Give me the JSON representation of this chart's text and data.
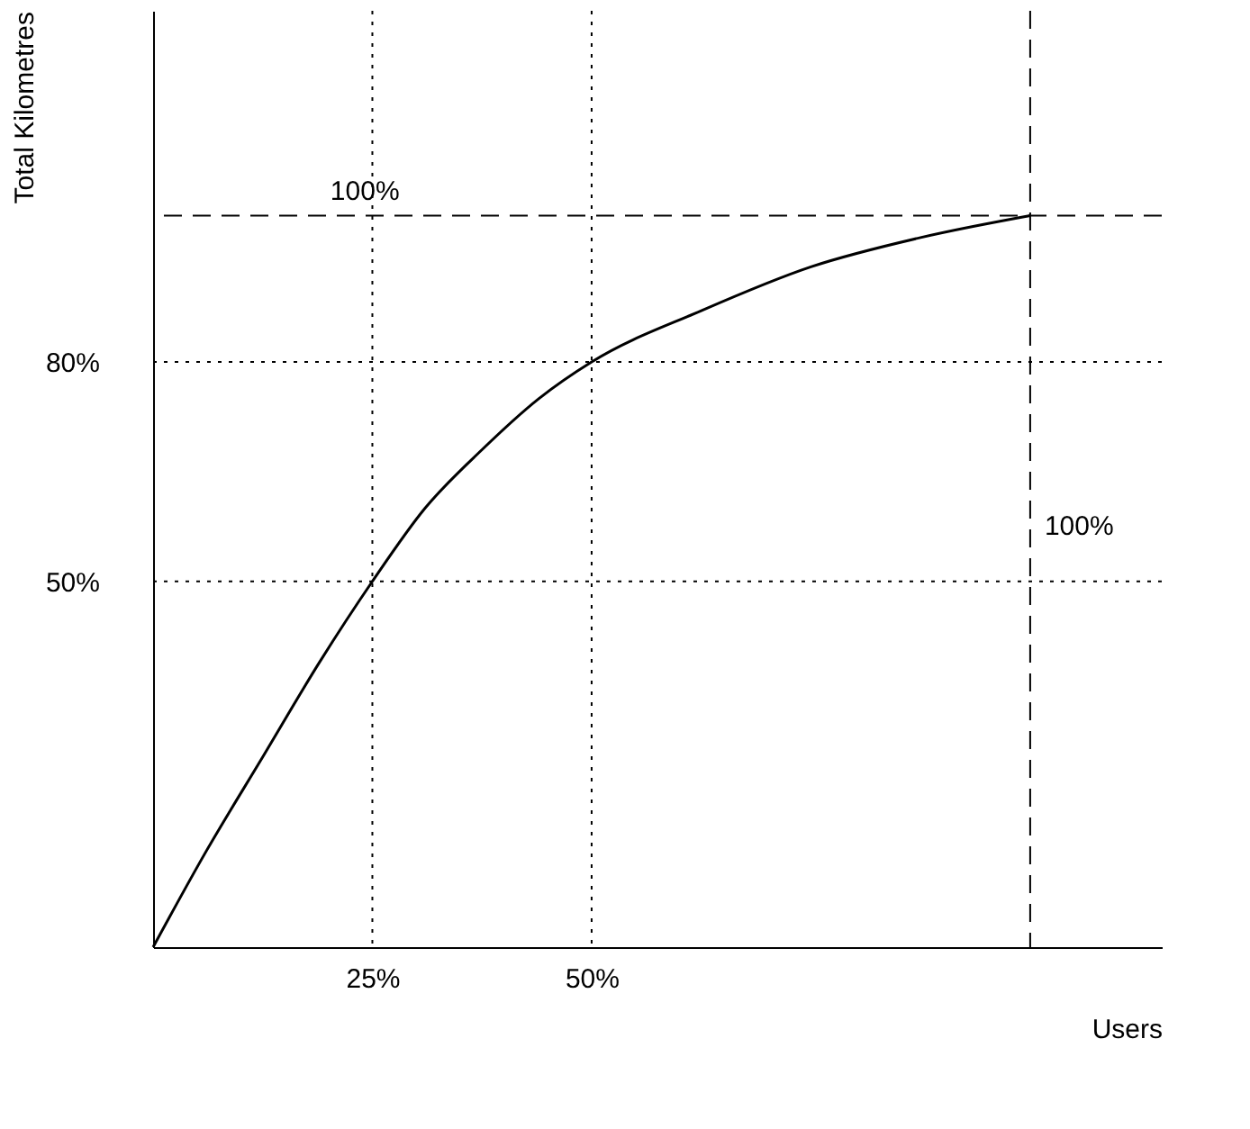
{
  "chart_data": {
    "type": "line",
    "xlabel": "Users",
    "ylabel": "Total Kilometres",
    "x": [
      0,
      6,
      12.5,
      19,
      25,
      31,
      37.5,
      44,
      50,
      62.5,
      75,
      87.5,
      100
    ],
    "series": [
      {
        "color": "#000000",
        "values": [
          0,
          13,
          26,
          39,
          50,
          60,
          68,
          75,
          80,
          87,
          93,
          97,
          100
        ]
      }
    ],
    "xlim": [
      0,
      115
    ],
    "ylim": [
      0,
      128
    ],
    "xticks": [
      {
        "value": 25,
        "label": "25%"
      },
      {
        "value": 50,
        "label": "50%"
      }
    ],
    "yticks": [
      {
        "value": 50,
        "label": "50%"
      },
      {
        "value": 80,
        "label": "80%"
      }
    ],
    "ref_lines": [
      {
        "axis": "y",
        "value": 100,
        "label": "100%",
        "line_style": "dashed"
      },
      {
        "axis": "x",
        "value": 100,
        "label": "100%",
        "line_style": "dashed"
      },
      {
        "axis": "y",
        "value": 80,
        "line_style": "dotted"
      },
      {
        "axis": "y",
        "value": 50,
        "line_style": "dotted"
      },
      {
        "axis": "x",
        "value": 25,
        "line_style": "dotted"
      },
      {
        "axis": "x",
        "value": 50,
        "line_style": "dotted"
      }
    ],
    "grid": false,
    "marker": "none",
    "line_style": "solid"
  }
}
